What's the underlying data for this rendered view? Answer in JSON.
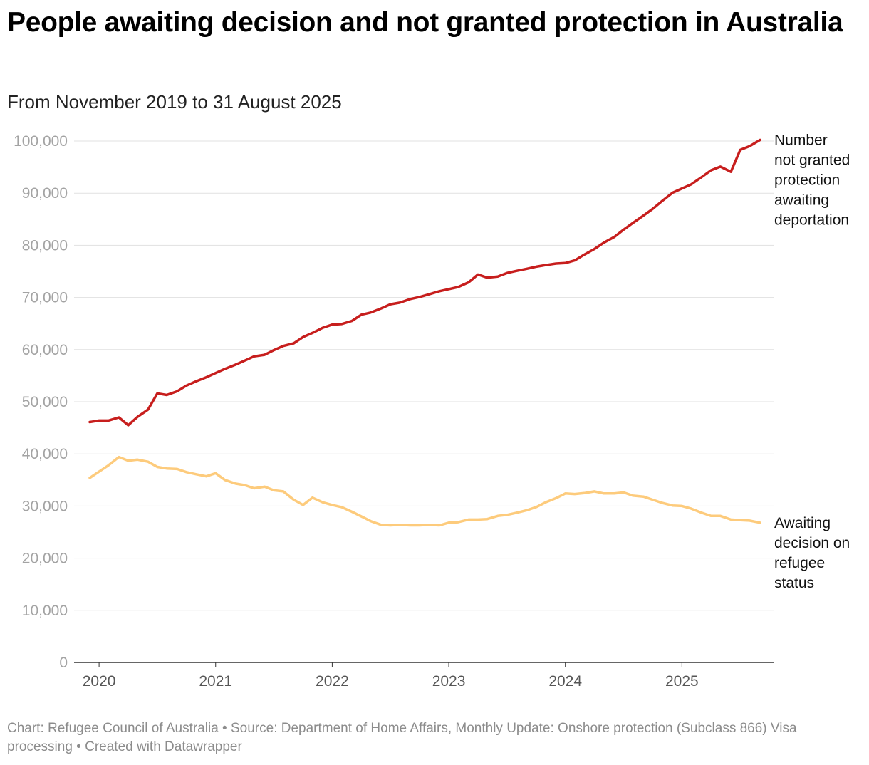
{
  "title": "People awaiting decision and not granted protection in Australia",
  "subtitle": "From November 2019 to 31 August 2025",
  "footer": {
    "chart_by": "Chart: Refugee Council of Australia",
    "source": "Source: Department of Home Affairs, Monthly Update: Onshore protection (Subclass 866) Visa processing",
    "created_with": "Created with Datawrapper",
    "separator": " • "
  },
  "chart_data": {
    "type": "line",
    "title": "People awaiting decision and not granted protection in Australia",
    "subtitle": "From November 2019 to 31 August 2025",
    "xlabel": "",
    "ylabel": "",
    "ylim": [
      0,
      100000
    ],
    "yticks": [
      0,
      10000,
      20000,
      30000,
      40000,
      50000,
      60000,
      70000,
      80000,
      90000,
      100000
    ],
    "ytick_labels": [
      "0",
      "10,000",
      "20,000",
      "30,000",
      "40,000",
      "50,000",
      "60,000",
      "70,000",
      "80,000",
      "90,000",
      "100,000"
    ],
    "xlim": [
      2019.9,
      2025.75
    ],
    "xticks": [
      2020,
      2021,
      2022,
      2023,
      2024,
      2025
    ],
    "xtick_labels": [
      "2020",
      "2021",
      "2022",
      "2023",
      "2024",
      "2025"
    ],
    "grid": true,
    "series": [
      {
        "name": "Number not granted protection awaiting deportation",
        "label_lines": [
          "Number",
          "not granted",
          "protection",
          "awaiting",
          "deportation"
        ],
        "color": "#c71e1d",
        "points": [
          [
            2019.92,
            46100
          ],
          [
            2020.0,
            46400
          ],
          [
            2020.08,
            46400
          ],
          [
            2020.17,
            47000
          ],
          [
            2020.25,
            45500
          ],
          [
            2020.33,
            47100
          ],
          [
            2020.42,
            48500
          ],
          [
            2020.5,
            51600
          ],
          [
            2020.58,
            51300
          ],
          [
            2020.67,
            52000
          ],
          [
            2020.75,
            53100
          ],
          [
            2020.83,
            53900
          ],
          [
            2020.92,
            54700
          ],
          [
            2021.0,
            55500
          ],
          [
            2021.08,
            56300
          ],
          [
            2021.17,
            57100
          ],
          [
            2021.25,
            57900
          ],
          [
            2021.33,
            58700
          ],
          [
            2021.42,
            59000
          ],
          [
            2021.5,
            59900
          ],
          [
            2021.58,
            60700
          ],
          [
            2021.67,
            61200
          ],
          [
            2021.75,
            62400
          ],
          [
            2021.83,
            63200
          ],
          [
            2021.92,
            64200
          ],
          [
            2022.0,
            64800
          ],
          [
            2022.08,
            64900
          ],
          [
            2022.17,
            65500
          ],
          [
            2022.25,
            66700
          ],
          [
            2022.33,
            67100
          ],
          [
            2022.42,
            67900
          ],
          [
            2022.5,
            68700
          ],
          [
            2022.58,
            69000
          ],
          [
            2022.67,
            69700
          ],
          [
            2022.75,
            70100
          ],
          [
            2022.83,
            70600
          ],
          [
            2022.92,
            71200
          ],
          [
            2023.0,
            71600
          ],
          [
            2023.08,
            72000
          ],
          [
            2023.17,
            72900
          ],
          [
            2023.25,
            74400
          ],
          [
            2023.33,
            73800
          ],
          [
            2023.42,
            74000
          ],
          [
            2023.5,
            74700
          ],
          [
            2023.58,
            75100
          ],
          [
            2023.67,
            75500
          ],
          [
            2023.75,
            75900
          ],
          [
            2023.83,
            76200
          ],
          [
            2023.92,
            76500
          ],
          [
            2024.0,
            76600
          ],
          [
            2024.08,
            77100
          ],
          [
            2024.17,
            78300
          ],
          [
            2024.25,
            79300
          ],
          [
            2024.33,
            80500
          ],
          [
            2024.42,
            81600
          ],
          [
            2024.5,
            83000
          ],
          [
            2024.58,
            84300
          ],
          [
            2024.67,
            85700
          ],
          [
            2024.75,
            87000
          ],
          [
            2024.83,
            88500
          ],
          [
            2024.92,
            90100
          ],
          [
            2025.0,
            90900
          ],
          [
            2025.08,
            91700
          ],
          [
            2025.17,
            93100
          ],
          [
            2025.25,
            94400
          ],
          [
            2025.33,
            95100
          ],
          [
            2025.42,
            94100
          ],
          [
            2025.5,
            98300
          ],
          [
            2025.58,
            99000
          ],
          [
            2025.67,
            100200
          ]
        ]
      },
      {
        "name": "Awaiting decision on refugee status",
        "label_lines": [
          "Awaiting",
          "decision on",
          "refugee",
          "status"
        ],
        "color": "#fdcb7c",
        "points": [
          [
            2019.92,
            35400
          ],
          [
            2020.0,
            36600
          ],
          [
            2020.08,
            37800
          ],
          [
            2020.17,
            39400
          ],
          [
            2020.25,
            38700
          ],
          [
            2020.33,
            38900
          ],
          [
            2020.42,
            38500
          ],
          [
            2020.5,
            37500
          ],
          [
            2020.58,
            37200
          ],
          [
            2020.67,
            37100
          ],
          [
            2020.75,
            36500
          ],
          [
            2020.83,
            36100
          ],
          [
            2020.92,
            35700
          ],
          [
            2021.0,
            36300
          ],
          [
            2021.08,
            35000
          ],
          [
            2021.17,
            34300
          ],
          [
            2021.25,
            34000
          ],
          [
            2021.33,
            33400
          ],
          [
            2021.42,
            33700
          ],
          [
            2021.5,
            33000
          ],
          [
            2021.58,
            32800
          ],
          [
            2021.67,
            31200
          ],
          [
            2021.75,
            30200
          ],
          [
            2021.83,
            31600
          ],
          [
            2021.92,
            30700
          ],
          [
            2022.0,
            30200
          ],
          [
            2022.08,
            29800
          ],
          [
            2022.17,
            28900
          ],
          [
            2022.25,
            28000
          ],
          [
            2022.33,
            27100
          ],
          [
            2022.42,
            26400
          ],
          [
            2022.5,
            26300
          ],
          [
            2022.58,
            26400
          ],
          [
            2022.67,
            26300
          ],
          [
            2022.75,
            26300
          ],
          [
            2022.83,
            26400
          ],
          [
            2022.92,
            26300
          ],
          [
            2023.0,
            26800
          ],
          [
            2023.08,
            26900
          ],
          [
            2023.17,
            27400
          ],
          [
            2023.25,
            27400
          ],
          [
            2023.33,
            27500
          ],
          [
            2023.42,
            28100
          ],
          [
            2023.5,
            28300
          ],
          [
            2023.58,
            28700
          ],
          [
            2023.67,
            29200
          ],
          [
            2023.75,
            29800
          ],
          [
            2023.83,
            30700
          ],
          [
            2023.92,
            31500
          ],
          [
            2024.0,
            32400
          ],
          [
            2024.08,
            32300
          ],
          [
            2024.17,
            32500
          ],
          [
            2024.25,
            32800
          ],
          [
            2024.33,
            32400
          ],
          [
            2024.42,
            32400
          ],
          [
            2024.5,
            32600
          ],
          [
            2024.58,
            32000
          ],
          [
            2024.67,
            31800
          ],
          [
            2024.75,
            31200
          ],
          [
            2024.83,
            30600
          ],
          [
            2024.92,
            30100
          ],
          [
            2025.0,
            30000
          ],
          [
            2025.08,
            29500
          ],
          [
            2025.17,
            28700
          ],
          [
            2025.25,
            28100
          ],
          [
            2025.33,
            28100
          ],
          [
            2025.42,
            27400
          ],
          [
            2025.5,
            27300
          ],
          [
            2025.58,
            27200
          ],
          [
            2025.67,
            26800
          ]
        ]
      }
    ]
  }
}
